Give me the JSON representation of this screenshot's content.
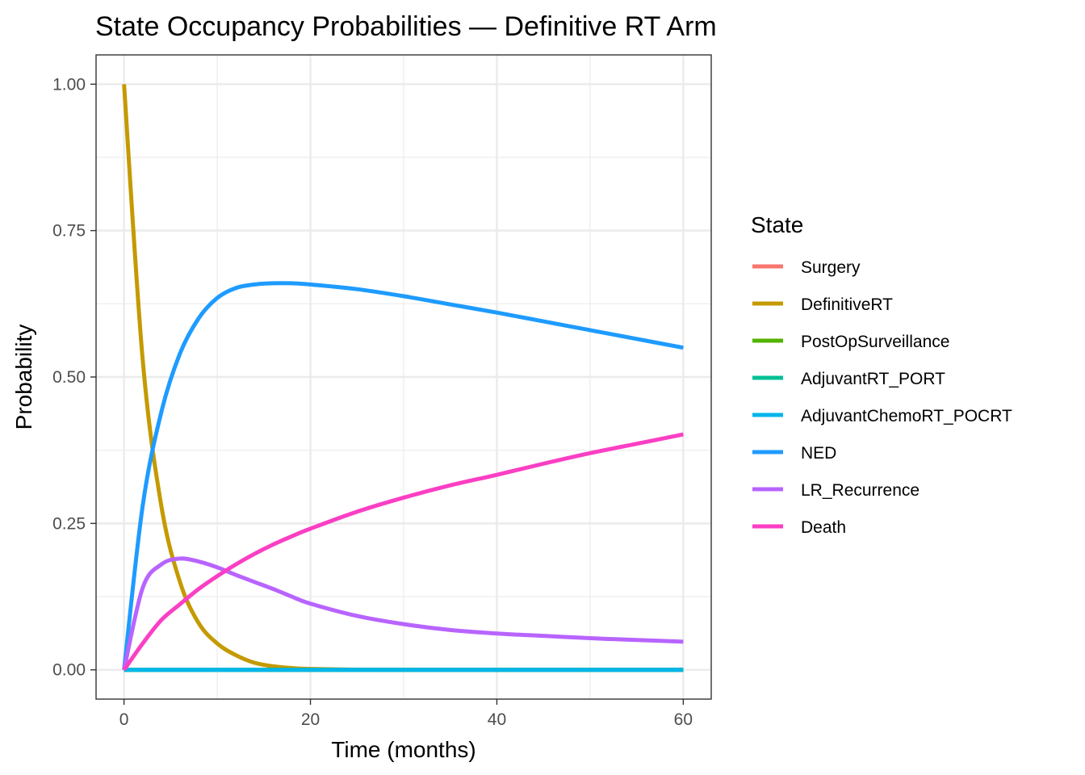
{
  "chart_data": {
    "type": "line",
    "title": "State Occupancy Probabilities — Definitive RT Arm",
    "xlabel": "Time (months)",
    "ylabel": "Probability",
    "xlim": [
      -3,
      63
    ],
    "ylim": [
      -0.05,
      1.05
    ],
    "x_ticks": [
      0,
      20,
      40,
      60
    ],
    "x_tick_labels": [
      "0",
      "20",
      "40",
      "60"
    ],
    "x_minor_ticks": [
      10,
      30,
      50
    ],
    "y_ticks": [
      0,
      0.25,
      0.5,
      0.75,
      1.0
    ],
    "y_tick_labels": [
      "0.00",
      "0.25",
      "0.50",
      "0.75",
      "1.00"
    ],
    "y_minor_ticks": [
      0.125,
      0.375,
      0.625,
      0.875
    ],
    "grid": true,
    "legend_title": "State",
    "legend_position": "right",
    "x": [
      0,
      2,
      4,
      6,
      8,
      10,
      12,
      14,
      16,
      18,
      20,
      25,
      30,
      35,
      40,
      45,
      50,
      55,
      60
    ],
    "series": [
      {
        "name": "Surgery",
        "color": "#F8766D",
        "values": [
          0,
          0,
          0,
          0,
          0,
          0,
          0,
          0,
          0,
          0,
          0,
          0,
          0,
          0,
          0,
          0,
          0,
          0,
          0
        ]
      },
      {
        "name": "DefinitiveRT",
        "color": "#C49A00",
        "values": [
          1.0,
          0.53,
          0.28,
          0.15,
          0.08,
          0.045,
          0.025,
          0.012,
          0.006,
          0.003,
          0.0015,
          0.0003,
          0,
          0,
          0,
          0,
          0,
          0,
          0
        ]
      },
      {
        "name": "PostOpSurveillance",
        "color": "#53B400",
        "values": [
          0,
          0,
          0,
          0,
          0,
          0,
          0,
          0,
          0,
          0,
          0,
          0,
          0,
          0,
          0,
          0,
          0,
          0,
          0
        ]
      },
      {
        "name": "AdjuvantRT_PORT",
        "color": "#00C094",
        "values": [
          0,
          0,
          0,
          0,
          0,
          0,
          0,
          0,
          0,
          0,
          0,
          0,
          0,
          0,
          0,
          0,
          0,
          0,
          0
        ]
      },
      {
        "name": "AdjuvantChemoRT_POCRT",
        "color": "#00B6EB",
        "values": [
          0,
          0,
          0,
          0,
          0,
          0,
          0,
          0,
          0,
          0,
          0,
          0,
          0,
          0,
          0,
          0,
          0,
          0,
          0
        ]
      },
      {
        "name": "NED",
        "color": "#1E9BFF",
        "values": [
          0,
          0.28,
          0.44,
          0.54,
          0.6,
          0.635,
          0.652,
          0.658,
          0.66,
          0.66,
          0.658,
          0.65,
          0.638,
          0.624,
          0.61,
          0.595,
          0.58,
          0.565,
          0.55
        ]
      },
      {
        "name": "LR_Recurrence",
        "color": "#B864FF",
        "values": [
          0,
          0.14,
          0.18,
          0.19,
          0.185,
          0.175,
          0.162,
          0.15,
          0.138,
          0.125,
          0.113,
          0.092,
          0.078,
          0.068,
          0.062,
          0.058,
          0.054,
          0.051,
          0.048
        ]
      },
      {
        "name": "Death",
        "color": "#FB3FC4",
        "values": [
          0,
          0.045,
          0.085,
          0.112,
          0.138,
          0.16,
          0.18,
          0.198,
          0.214,
          0.228,
          0.241,
          0.27,
          0.294,
          0.315,
          0.333,
          0.352,
          0.37,
          0.386,
          0.402
        ]
      }
    ]
  }
}
